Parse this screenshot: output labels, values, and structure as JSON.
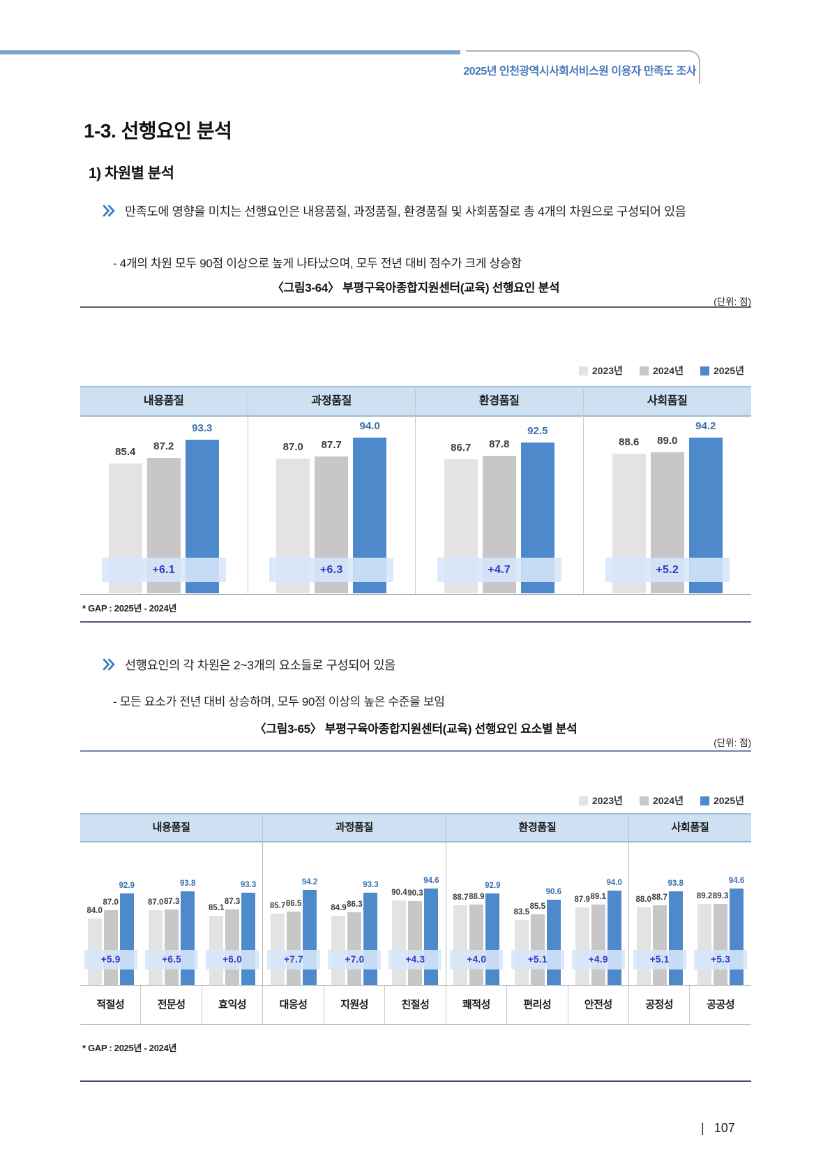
{
  "page": {
    "header_title": "2025년 인천광역시사회서비스원 이용자 만족도 조사",
    "page_number_prefix": "|",
    "page_number": "107"
  },
  "section": {
    "title": "1-3. 선행요인 분석",
    "subtitle": "1) 차원별 분석",
    "bullets": [
      {
        "text": "만족도에 영향을 미치는 선행요인은 내용품질, 과정품질, 환경품질 및 사회품질로 총 4개의 차원으로 구성되어 있음",
        "sub": "- 4개의 차원 모두 90점 이상으로 높게 나타났으며, 모두 전년 대비 점수가 크게 상승함"
      },
      {
        "text": "선행요인의 각 차원은 2~3개의 요소들로 구성되어 있음",
        "sub": "- 모든 요소가 전년 대비 상승하며, 모두 90점 이상의 높은 수준을 보임"
      }
    ]
  },
  "legend": {
    "items": [
      {
        "label": "2023년",
        "color": "#e3e3e3"
      },
      {
        "label": "2024년",
        "color": "#c7c7c7"
      },
      {
        "label": "2025년",
        "color": "#4d89cb"
      }
    ]
  },
  "chart_data": [
    {
      "type": "bar",
      "title": "〈그림3-64〉 부평구육아종합지원센터(교육) 선행요인 분석",
      "unit_label": "(단위: 점)",
      "categories": [
        "내용품질",
        "과정품질",
        "환경품질",
        "사회품질"
      ],
      "series": [
        {
          "name": "2023년",
          "values": [
            85.4,
            87.0,
            86.7,
            88.6
          ]
        },
        {
          "name": "2024년",
          "values": [
            87.2,
            87.7,
            87.8,
            89.0
          ]
        },
        {
          "name": "2025년",
          "values": [
            93.3,
            94.0,
            92.5,
            94.2
          ]
        }
      ],
      "gap_labels": [
        "+6.1",
        "+6.3",
        "+4.7",
        "+5.2"
      ],
      "gap_note": "* GAP : 2025년  - 2024년",
      "legend_position": "top-right",
      "ylim": [
        80,
        96
      ]
    },
    {
      "type": "bar",
      "title": "〈그림3-65〉 부평구육아종합지원센터(교육) 선행요인 요소별 분석",
      "unit_label": "(단위: 점)",
      "dimension_groups": [
        {
          "label": "내용품질",
          "span": 3
        },
        {
          "label": "과정품질",
          "span": 3
        },
        {
          "label": "환경품질",
          "span": 3
        },
        {
          "label": "사회품질",
          "span": 2
        }
      ],
      "categories": [
        "적절성",
        "전문성",
        "효익성",
        "대응성",
        "지원성",
        "친절성",
        "쾌적성",
        "편리성",
        "안전성",
        "공정성",
        "공공성"
      ],
      "series": [
        {
          "name": "2023년",
          "values": [
            84.0,
            87.0,
            85.1,
            85.7,
            84.9,
            90.4,
            88.7,
            83.5,
            87.9,
            88.0,
            89.2
          ]
        },
        {
          "name": "2024년",
          "values": [
            87.0,
            87.3,
            87.3,
            86.5,
            86.3,
            90.3,
            88.9,
            85.5,
            89.1,
            88.7,
            89.3
          ]
        },
        {
          "name": "2025년",
          "values": [
            92.9,
            93.8,
            93.3,
            94.2,
            93.3,
            94.6,
            92.9,
            90.6,
            94.0,
            93.8,
            94.6
          ]
        }
      ],
      "gap_labels": [
        "+5.9",
        "+6.5",
        "+6.0",
        "+7.7",
        "+7.0",
        "+4.3",
        "+4.0",
        "+5.1",
        "+4.9",
        "+5.1",
        "+5.3"
      ],
      "gap_note": "* GAP : 2025년  - 2024년",
      "legend_position": "top-right",
      "ylim": [
        80,
        96
      ]
    }
  ],
  "colors": {
    "bar_2023": "#e3e3e3",
    "bar_2024": "#c7c7c7",
    "bar_2025": "#4d89cb",
    "gap_band": "rgba(214,231,249,0.88)",
    "gap_text": "#3737c8",
    "value_label_2025": "#3a6fae",
    "header_cell_bg": "#cde1f2",
    "accent_blue_bar": "#7ba3cc",
    "header_text_blue": "#4678b8"
  }
}
